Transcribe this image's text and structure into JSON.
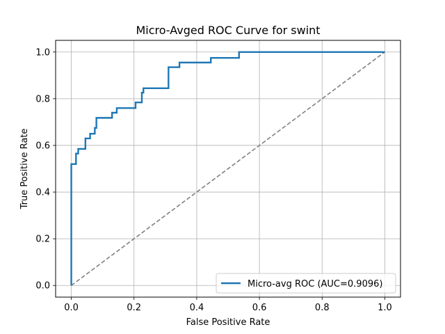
{
  "chart_data": {
    "type": "line",
    "title": "Micro-Avged ROC Curve for swint",
    "xlabel": "False Positive Rate",
    "ylabel": "True Positive Rate",
    "xlim": [
      -0.05,
      1.05
    ],
    "ylim": [
      -0.05,
      1.05
    ],
    "xticks": [
      0.0,
      0.2,
      0.4,
      0.6,
      0.8,
      1.0
    ],
    "yticks": [
      0.0,
      0.2,
      0.4,
      0.6,
      0.8,
      1.0
    ],
    "xtick_labels": [
      "0.0",
      "0.2",
      "0.4",
      "0.6",
      "0.8",
      "1.0"
    ],
    "ytick_labels": [
      "0.0",
      "0.2",
      "0.4",
      "0.6",
      "0.8",
      "1.0"
    ],
    "grid": true,
    "legend_position": "lower-right",
    "series": [
      {
        "name": "Micro-avg ROC (AUC=0.9096)",
        "color": "#1f77b4",
        "style": "solid",
        "x": [
          0.0,
          0.0,
          0.015,
          0.015,
          0.022,
          0.022,
          0.045,
          0.045,
          0.06,
          0.06,
          0.075,
          0.075,
          0.08,
          0.08,
          0.13,
          0.13,
          0.145,
          0.145,
          0.205,
          0.205,
          0.225,
          0.225,
          0.23,
          0.23,
          0.31,
          0.31,
          0.345,
          0.345,
          0.445,
          0.445,
          0.535,
          0.535,
          1.0
        ],
        "y": [
          0.0,
          0.52,
          0.52,
          0.565,
          0.565,
          0.585,
          0.585,
          0.63,
          0.63,
          0.65,
          0.65,
          0.675,
          0.675,
          0.718,
          0.718,
          0.74,
          0.74,
          0.76,
          0.76,
          0.784,
          0.784,
          0.826,
          0.826,
          0.845,
          0.845,
          0.935,
          0.935,
          0.955,
          0.955,
          0.975,
          0.975,
          1.0,
          1.0
        ]
      },
      {
        "name": "",
        "color": "#808080",
        "style": "dashed",
        "x": [
          0.0,
          1.0
        ],
        "y": [
          0.0,
          1.0
        ]
      }
    ]
  }
}
